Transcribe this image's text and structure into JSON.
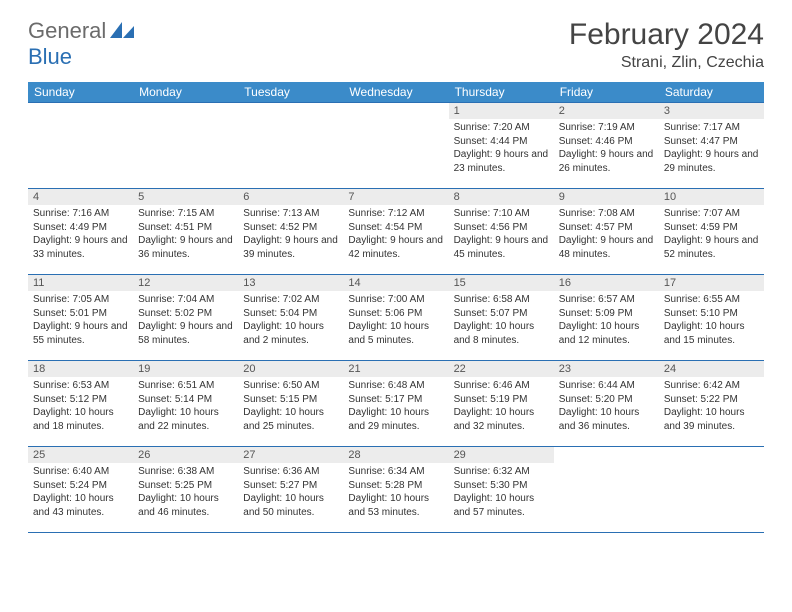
{
  "logo": {
    "part1": "General",
    "part2": "Blue"
  },
  "title": "February 2024",
  "location": "Strani, Zlin, Czechia",
  "colors": {
    "header_bg": "#3b8bc9",
    "border": "#2a6fb3",
    "daynum_bg": "#ececec",
    "logo_gray": "#6b6b6b",
    "logo_blue": "#2a6fb3"
  },
  "daynames": [
    "Sunday",
    "Monday",
    "Tuesday",
    "Wednesday",
    "Thursday",
    "Friday",
    "Saturday"
  ],
  "weeks": [
    [
      null,
      null,
      null,
      null,
      {
        "n": "1",
        "sr": "7:20 AM",
        "ss": "4:44 PM",
        "dl": "9 hours and 23 minutes."
      },
      {
        "n": "2",
        "sr": "7:19 AM",
        "ss": "4:46 PM",
        "dl": "9 hours and 26 minutes."
      },
      {
        "n": "3",
        "sr": "7:17 AM",
        "ss": "4:47 PM",
        "dl": "9 hours and 29 minutes."
      }
    ],
    [
      {
        "n": "4",
        "sr": "7:16 AM",
        "ss": "4:49 PM",
        "dl": "9 hours and 33 minutes."
      },
      {
        "n": "5",
        "sr": "7:15 AM",
        "ss": "4:51 PM",
        "dl": "9 hours and 36 minutes."
      },
      {
        "n": "6",
        "sr": "7:13 AM",
        "ss": "4:52 PM",
        "dl": "9 hours and 39 minutes."
      },
      {
        "n": "7",
        "sr": "7:12 AM",
        "ss": "4:54 PM",
        "dl": "9 hours and 42 minutes."
      },
      {
        "n": "8",
        "sr": "7:10 AM",
        "ss": "4:56 PM",
        "dl": "9 hours and 45 minutes."
      },
      {
        "n": "9",
        "sr": "7:08 AM",
        "ss": "4:57 PM",
        "dl": "9 hours and 48 minutes."
      },
      {
        "n": "10",
        "sr": "7:07 AM",
        "ss": "4:59 PM",
        "dl": "9 hours and 52 minutes."
      }
    ],
    [
      {
        "n": "11",
        "sr": "7:05 AM",
        "ss": "5:01 PM",
        "dl": "9 hours and 55 minutes."
      },
      {
        "n": "12",
        "sr": "7:04 AM",
        "ss": "5:02 PM",
        "dl": "9 hours and 58 minutes."
      },
      {
        "n": "13",
        "sr": "7:02 AM",
        "ss": "5:04 PM",
        "dl": "10 hours and 2 minutes."
      },
      {
        "n": "14",
        "sr": "7:00 AM",
        "ss": "5:06 PM",
        "dl": "10 hours and 5 minutes."
      },
      {
        "n": "15",
        "sr": "6:58 AM",
        "ss": "5:07 PM",
        "dl": "10 hours and 8 minutes."
      },
      {
        "n": "16",
        "sr": "6:57 AM",
        "ss": "5:09 PM",
        "dl": "10 hours and 12 minutes."
      },
      {
        "n": "17",
        "sr": "6:55 AM",
        "ss": "5:10 PM",
        "dl": "10 hours and 15 minutes."
      }
    ],
    [
      {
        "n": "18",
        "sr": "6:53 AM",
        "ss": "5:12 PM",
        "dl": "10 hours and 18 minutes."
      },
      {
        "n": "19",
        "sr": "6:51 AM",
        "ss": "5:14 PM",
        "dl": "10 hours and 22 minutes."
      },
      {
        "n": "20",
        "sr": "6:50 AM",
        "ss": "5:15 PM",
        "dl": "10 hours and 25 minutes."
      },
      {
        "n": "21",
        "sr": "6:48 AM",
        "ss": "5:17 PM",
        "dl": "10 hours and 29 minutes."
      },
      {
        "n": "22",
        "sr": "6:46 AM",
        "ss": "5:19 PM",
        "dl": "10 hours and 32 minutes."
      },
      {
        "n": "23",
        "sr": "6:44 AM",
        "ss": "5:20 PM",
        "dl": "10 hours and 36 minutes."
      },
      {
        "n": "24",
        "sr": "6:42 AM",
        "ss": "5:22 PM",
        "dl": "10 hours and 39 minutes."
      }
    ],
    [
      {
        "n": "25",
        "sr": "6:40 AM",
        "ss": "5:24 PM",
        "dl": "10 hours and 43 minutes."
      },
      {
        "n": "26",
        "sr": "6:38 AM",
        "ss": "5:25 PM",
        "dl": "10 hours and 46 minutes."
      },
      {
        "n": "27",
        "sr": "6:36 AM",
        "ss": "5:27 PM",
        "dl": "10 hours and 50 minutes."
      },
      {
        "n": "28",
        "sr": "6:34 AM",
        "ss": "5:28 PM",
        "dl": "10 hours and 53 minutes."
      },
      {
        "n": "29",
        "sr": "6:32 AM",
        "ss": "5:30 PM",
        "dl": "10 hours and 57 minutes."
      },
      null,
      null
    ]
  ],
  "labels": {
    "sunrise": "Sunrise: ",
    "sunset": "Sunset: ",
    "daylight": "Daylight: "
  }
}
